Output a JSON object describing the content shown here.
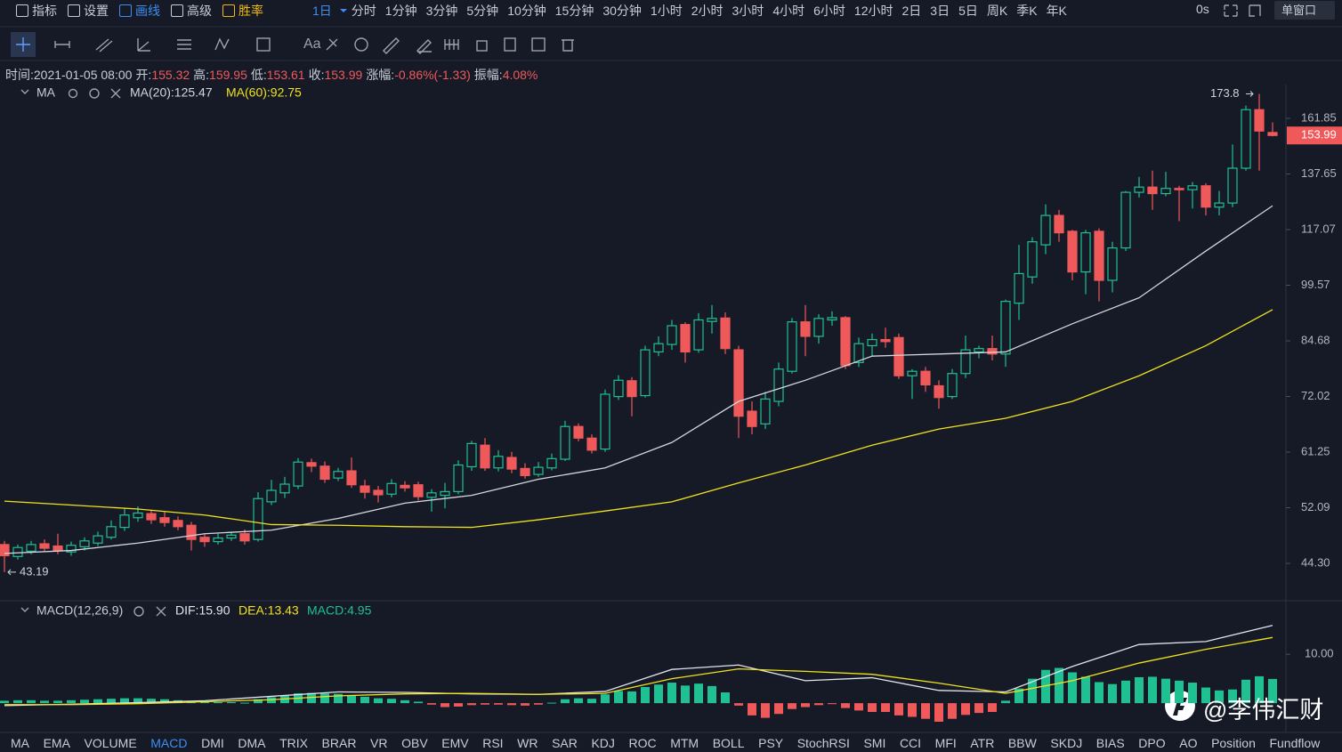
{
  "toolbar": {
    "menu": [
      "指标",
      "设置",
      "画线",
      "高级",
      "胜率"
    ],
    "intervals": [
      "1日",
      "分时",
      "1分钟",
      "3分钟",
      "5分钟",
      "10分钟",
      "15分钟",
      "30分钟",
      "1小时",
      "2小时",
      "3小时",
      "4小时",
      "6小时",
      "12小时",
      "2日",
      "3日",
      "5日",
      "周K",
      "季K",
      "年K"
    ],
    "timer": "0s",
    "window": "单窗口",
    "text_tool": "Aa"
  },
  "info": [
    {
      "label": "时间:",
      "value": "2021-01-05 08:00"
    },
    {
      "label": "开:"
    },
    {
      "label": "高:"
    },
    {
      "label": "低:"
    },
    {
      "label": "收:"
    },
    {
      "label": "涨幅:",
      "value": "-0.86%(-1.33)"
    },
    {
      "label": "振幅:",
      "value": "4.08%"
    }
  ],
  "chart_data": [
    {
      "type": "candlestick",
      "log_scale": true,
      "grid": false,
      "legend_name": "MA",
      "up_color": "#1fc092",
      "down_color": "#f0595a",
      "ylim": [
        40.05,
        178.6
      ],
      "yticks": [
        161.85,
        137.65,
        117.07,
        99.57,
        84.68,
        72.02,
        61.25,
        52.09,
        {
          "value": 44.3,
          "label": "44.30"
        }
      ],
      "open": [
        46.8,
        45.2,
        45.9,
        46.9,
        46.6,
        45.8,
        46.5,
        47.0,
        47.8,
        49.2,
        50.6,
        51.2,
        50.6,
        50.2,
        49.5,
        47.8,
        47.2,
        47.7,
        48.3,
        47.5,
        53.0,
        54.4,
        55.5,
        59.4,
        58.8,
        56.8,
        58.0,
        55.5,
        54.8,
        54.2,
        55.6,
        55.7,
        53.7,
        54.0,
        54.6,
        58.7,
        62.5,
        58.5,
        60.3,
        58.4,
        57.4,
        58.5,
        60.0,
        66.0,
        63.8,
        61.8,
        72.0,
        75.4,
        72.2,
        82.0,
        83.8,
        88.8,
        82.5,
        89.6,
        90.5,
        82.5,
        69.0,
        66.5,
        71.0,
        77.5,
        89.5,
        85.8,
        90.0,
        90.6,
        79.5,
        83.5,
        85.0,
        85.5,
        76.5,
        77.5,
        74.3,
        72.0,
        77.0,
        82.0,
        82.8,
        81.5,
        94.5,
        102.0,
        112.0,
        122.0,
        116.5,
        103.5,
        116.5,
        101.0,
        111.0,
        130.5,
        132.5,
        130.0,
        132.0,
        131.5,
        133.0,
        125.0,
        126.5,
        140.0,
        166.0,
        155.32
      ],
      "high": [
        47.3,
        46.8,
        47.3,
        47.5,
        48.3,
        47.2,
        47.8,
        48.6,
        50.2,
        52.1,
        52.3,
        51.8,
        51.5,
        50.8,
        50.0,
        48.2,
        48.3,
        48.6,
        48.9,
        54.5,
        56.5,
        57.0,
        60.2,
        60.1,
        59.6,
        58.5,
        60.3,
        56.5,
        55.5,
        56.6,
        56.3,
        56.2,
        55.0,
        56.0,
        59.8,
        63.3,
        63.8,
        61.6,
        61.3,
        59.3,
        59.5,
        61.0,
        67.1,
        66.6,
        64.5,
        73.5,
        76.6,
        76.2,
        83.5,
        85.8,
        90.0,
        89.4,
        91.8,
        94.0,
        92.0,
        83.5,
        71.0,
        73.0,
        79.5,
        90.5,
        94.0,
        91.5,
        92.3,
        91.0,
        85.5,
        86.5,
        88.0,
        86.5,
        78.0,
        78.5,
        75.5,
        78.0,
        86.0,
        83.5,
        86.0,
        95.5,
        112.0,
        114.5,
        126.0,
        124.0,
        117.0,
        117.0,
        117.5,
        113.0,
        131.0,
        136.5,
        139.0,
        138.5,
        133.0,
        134.5,
        134.0,
        131.0,
        150.0,
        168.0,
        173.8,
        159.95
      ],
      "low": [
        43.19,
        44.8,
        45.5,
        45.8,
        45.5,
        45.3,
        46.0,
        46.6,
        47.5,
        48.7,
        50.0,
        49.7,
        49.3,
        48.8,
        46.0,
        46.5,
        46.8,
        47.3,
        46.8,
        47.2,
        52.5,
        53.6,
        55.0,
        57.8,
        56.0,
        56.3,
        55.2,
        53.5,
        52.9,
        53.7,
        54.6,
        53.2,
        51.5,
        52.0,
        54.2,
        58.0,
        58.0,
        57.9,
        57.6,
        56.7,
        57.0,
        58.1,
        59.7,
        63.2,
        61.0,
        61.3,
        71.3,
        68.0,
        71.8,
        81.0,
        82.5,
        79.5,
        81.8,
        86.5,
        81.5,
        63.8,
        64.5,
        65.5,
        70.0,
        77.0,
        81.0,
        84.0,
        88.5,
        78.0,
        78.5,
        81.0,
        83.0,
        75.8,
        71.5,
        73.0,
        69.5,
        71.5,
        76.0,
        80.5,
        80.0,
        78.5,
        90.0,
        100.0,
        109.0,
        113.0,
        101.0,
        97.0,
        95.0,
        97.5,
        110.0,
        128.5,
        124.0,
        129.0,
        120.0,
        124.5,
        122.0,
        122.0,
        125.0,
        139.0,
        139.0,
        153.61
      ],
      "close": [
        45.3,
        46.4,
        46.8,
        46.3,
        46.0,
        46.7,
        47.3,
        48.0,
        49.3,
        51.0,
        51.3,
        50.3,
        49.9,
        49.3,
        47.5,
        47.2,
        47.7,
        48.1,
        47.3,
        53.5,
        54.8,
        55.8,
        59.5,
        58.8,
        56.6,
        57.9,
        55.7,
        54.5,
        54.1,
        55.9,
        55.2,
        53.8,
        54.4,
        54.6,
        59.0,
        62.8,
        58.5,
        60.5,
        58.3,
        57.2,
        58.6,
        60.1,
        66.0,
        63.8,
        61.6,
        72.5,
        75.5,
        72.0,
        82.5,
        84.0,
        88.5,
        82.0,
        90.0,
        90.4,
        82.8,
        68.0,
        66.0,
        71.5,
        78.0,
        89.5,
        85.8,
        90.4,
        90.6,
        78.8,
        84.0,
        85.0,
        84.5,
        76.5,
        77.5,
        74.5,
        71.8,
        77.0,
        82.5,
        82.8,
        81.5,
        95.0,
        103.0,
        113.0,
        122.0,
        116.0,
        103.5,
        116.0,
        101.0,
        111.0,
        130.5,
        132.5,
        130.0,
        132.0,
        131.5,
        133.0,
        125.0,
        126.5,
        140.0,
        166.0,
        156.0,
        153.99
      ],
      "lines": [
        {
          "label": "MA(20):125.47",
          "color": "#d4d7de",
          "x": [
            0,
            5,
            10,
            15,
            20,
            25,
            30,
            35,
            40,
            45,
            50,
            55,
            60,
            65,
            70,
            75,
            80,
            85,
            90,
            95
          ],
          "values": [
            45.6,
            46.0,
            47.0,
            48.3,
            48.8,
            50.5,
            52.8,
            54.0,
            56.6,
            58.5,
            63.0,
            71.0,
            75.5,
            81.0,
            81.5,
            82.0,
            89.0,
            96.0,
            110.0,
            125.47
          ]
        },
        {
          "label": "MA(60):92.75",
          "color": "#f2e21c",
          "x": [
            0,
            5,
            10,
            15,
            20,
            25,
            30,
            35,
            40,
            45,
            50,
            55,
            60,
            65,
            70,
            75,
            80,
            85,
            90,
            95
          ],
          "values": [
            53.1,
            52.5,
            51.9,
            51.0,
            49.6,
            49.5,
            49.3,
            49.2,
            50.3,
            51.6,
            53.0,
            56.0,
            59.0,
            62.5,
            65.5,
            67.6,
            71.0,
            76.5,
            83.5,
            92.75
          ]
        }
      ]
    },
    {
      "type": "macd",
      "title": "MACD(12,26,9)",
      "ylim": [
        -5.8,
        20.4
      ],
      "yticks": [
        {
          "value": 10,
          "label": "10.00"
        }
      ],
      "histogram": {
        "label": "MACD:4.95",
        "up_color": "#1fc092",
        "down_color": "#f0595a",
        "values": [
          0.5,
          0.6,
          0.6,
          0.5,
          0.5,
          0.6,
          0.7,
          0.8,
          0.9,
          1.0,
          1.0,
          0.9,
          0.8,
          0.6,
          0.3,
          0.2,
          0.2,
          0.2,
          0.1,
          0.8,
          1.2,
          1.5,
          2.0,
          2.1,
          2.0,
          1.9,
          1.6,
          1.3,
          1.0,
          0.9,
          0.6,
          0.3,
          -0.3,
          -0.8,
          -0.7,
          -0.4,
          -0.3,
          -0.3,
          -0.4,
          -0.5,
          -0.3,
          0.1,
          0.8,
          1.0,
          0.9,
          1.8,
          2.5,
          2.4,
          3.3,
          3.8,
          4.2,
          3.6,
          4.0,
          3.5,
          2.2,
          -0.5,
          -2.5,
          -3.0,
          -2.2,
          -1.2,
          -0.8,
          -0.4,
          -0.2,
          -1.0,
          -1.5,
          -1.8,
          -1.8,
          -2.5,
          -2.8,
          -3.2,
          -3.8,
          -3.2,
          -2.4,
          -2.0,
          -1.8,
          0.5,
          3.0,
          5.0,
          6.8,
          7.2,
          6.3,
          5.4,
          4.3,
          3.9,
          4.6,
          5.3,
          5.4,
          5.0,
          4.6,
          4.2,
          3.2,
          2.6,
          2.8,
          4.8,
          5.5,
          4.95
        ]
      },
      "series": [
        {
          "label": "DIF:15.90",
          "color": "#e2e4ea",
          "x": [
            0,
            5,
            10,
            15,
            20,
            25,
            30,
            35,
            40,
            45,
            50,
            55,
            60,
            65,
            70,
            75,
            80,
            85,
            90,
            95
          ],
          "values": [
            -0.5,
            -0.2,
            0.1,
            0.5,
            1.4,
            2.3,
            2.2,
            1.9,
            1.8,
            2.4,
            6.9,
            7.8,
            4.6,
            5.2,
            2.6,
            2.3,
            7.5,
            12.0,
            12.6,
            15.9
          ]
        },
        {
          "label": "DEA:13.43",
          "color": "#f2e21c",
          "x": [
            0,
            5,
            10,
            15,
            20,
            25,
            30,
            35,
            40,
            45,
            50,
            55,
            60,
            65,
            70,
            75,
            80,
            85,
            90,
            95
          ],
          "values": [
            -0.3,
            -0.3,
            -0.1,
            0.3,
            0.7,
            1.5,
            1.9,
            2.0,
            1.8,
            2.0,
            5.0,
            7.0,
            6.5,
            5.9,
            4.1,
            2.0,
            4.6,
            8.2,
            11.0,
            13.43
          ]
        }
      ]
    }
  ],
  "tabs": [
    "MA",
    "EMA",
    "VOLUME",
    "MACD",
    "DMI",
    "DMA",
    "TRIX",
    "BRAR",
    "VR",
    "OBV",
    "EMV",
    "RSI",
    "WR",
    "SAR",
    "KDJ",
    "ROC",
    "MTM",
    "BOLL",
    "PSY",
    "StochRSI",
    "SMI",
    "CCI",
    "MFI",
    "ATR",
    "BBW",
    "SKDJ",
    "BIAS",
    "DPO",
    "AO",
    "Position",
    "Fundflow"
  ],
  "active_tab": 3,
  "watermark": "@李伟汇财"
}
